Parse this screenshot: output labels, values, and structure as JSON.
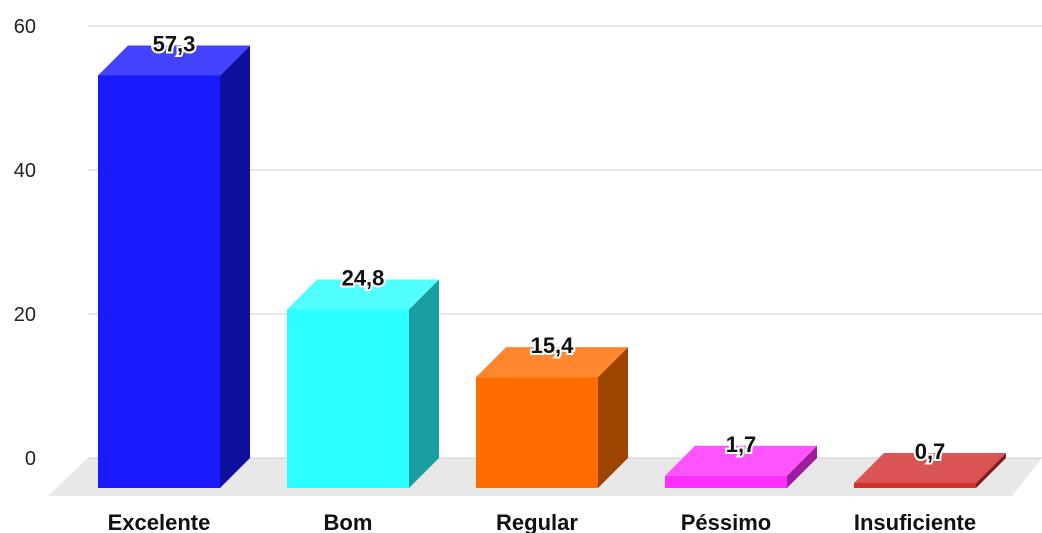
{
  "chart_data": {
    "type": "bar",
    "categories": [
      "Excelente",
      "Bom",
      "Regular",
      "Péssimo",
      "Insuficiente"
    ],
    "values": [
      57.3,
      24.8,
      15.4,
      1.7,
      0.7
    ],
    "value_labels": [
      "57,3",
      "24,8",
      "15,4",
      "1,7",
      "0,7"
    ],
    "colors": [
      "#1a1aff",
      "#2bffff",
      "#ff6d01",
      "#ff2eff",
      "#d32f2f"
    ],
    "yticks": [
      "0",
      "20",
      "40",
      "60"
    ],
    "ylim": [
      0,
      60
    ],
    "grid": true,
    "style": "3d",
    "title": "",
    "xlabel": "",
    "ylabel": ""
  }
}
